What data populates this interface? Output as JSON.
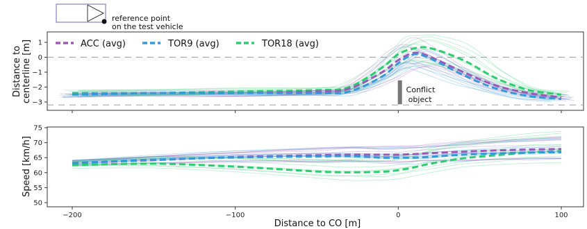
{
  "diagram": {
    "reference_label_line1": "reference point",
    "reference_label_line2": "on the test vehicle"
  },
  "colors": {
    "ACC": "#9b59b6",
    "TOR9": "#3498db",
    "TOR18": "#2ecc71",
    "object": "#777777",
    "refline": "#aaaaaa"
  },
  "chart_data": [
    {
      "type": "line",
      "xlabel": "",
      "ylabel": "Distance to centerline [m]",
      "xlim": [
        -200,
        100
      ],
      "ylim": [
        -3.3,
        1.5
      ],
      "yticks": [
        1,
        0,
        -1,
        -2,
        -3
      ],
      "x": [
        -200,
        -150,
        -100,
        -50,
        -30,
        -10,
        0,
        10,
        20,
        40,
        60,
        80,
        100
      ],
      "series": [
        {
          "name": "ACC (avg)",
          "values": [
            -2.5,
            -2.4,
            -2.4,
            -2.3,
            -2.1,
            -1.0,
            -0.2,
            0.3,
            0.0,
            -1.0,
            -1.9,
            -2.4,
            -2.7
          ]
        },
        {
          "name": "TOR9 (avg)",
          "values": [
            -2.5,
            -2.4,
            -2.4,
            -2.4,
            -2.3,
            -1.3,
            -0.4,
            0.2,
            -0.1,
            -1.2,
            -2.1,
            -2.6,
            -2.8
          ]
        },
        {
          "name": "TOR18 (avg)",
          "values": [
            -2.4,
            -2.4,
            -2.3,
            -2.2,
            -2.0,
            -0.7,
            0.2,
            0.6,
            0.6,
            -0.2,
            -1.4,
            -2.2,
            -2.5
          ]
        }
      ],
      "reference_lines": [
        0,
        -3.2
      ],
      "legend": "top-left",
      "grid": false,
      "annotations": [
        {
          "text_line1": "Conflict",
          "text_line2": "object",
          "x": 1,
          "y_from": -3.15,
          "y_to": -1.55
        }
      ]
    },
    {
      "type": "line",
      "xlabel": "Distance to CO [m]",
      "ylabel": "Speed [km/h]",
      "xlim": [
        -215,
        113
      ],
      "ylim": [
        49.5,
        75
      ],
      "yticks": [
        75,
        70,
        65,
        60,
        55,
        50
      ],
      "xticks": [
        -200,
        -100,
        0,
        100
      ],
      "xtick_labels": [
        "−200",
        "−100",
        "0",
        "100"
      ],
      "x": [
        -200,
        -150,
        -100,
        -50,
        -30,
        -10,
        0,
        10,
        20,
        40,
        60,
        80,
        100
      ],
      "series": [
        {
          "name": "ACC (avg)",
          "values": [
            63.2,
            64.2,
            65.2,
            65.8,
            66.0,
            66.0,
            66.0,
            66.2,
            66.5,
            67.0,
            67.4,
            67.7,
            67.9
          ]
        },
        {
          "name": "TOR9 (avg)",
          "values": [
            63.2,
            64.3,
            65.1,
            65.4,
            65.5,
            65.0,
            65.0,
            65.0,
            65.3,
            66.0,
            66.4,
            66.7,
            66.8
          ]
        },
        {
          "name": "TOR18 (avg)",
          "values": [
            62.5,
            63.0,
            62.0,
            60.4,
            60.1,
            60.3,
            60.8,
            61.8,
            63.0,
            64.8,
            65.8,
            66.7,
            67.2
          ]
        }
      ],
      "legend": "none",
      "grid": false
    }
  ]
}
